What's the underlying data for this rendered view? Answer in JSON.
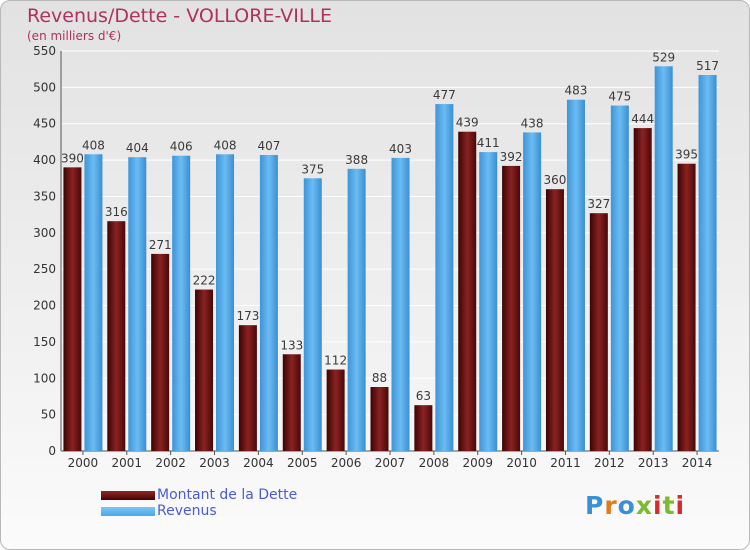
{
  "header": {
    "title": "Revenus/Dette - VOLLORE-VILLE",
    "subtitle": "(en milliers d'€)"
  },
  "legend": {
    "items": [
      {
        "label": "Montant de la Dette",
        "color": "#6b1010"
      },
      {
        "label": "Revenus",
        "color": "#4aa8e8"
      }
    ]
  },
  "logo": {
    "text": "Proxiti",
    "colors": [
      "#3a8fd8",
      "#e07b1c",
      "#3a8fd8",
      "#7cba2e",
      "#d82c2c",
      "#7cba2e",
      "#d82c2c"
    ]
  },
  "chart_data": {
    "type": "bar",
    "title": "Revenus/Dette - VOLLORE-VILLE",
    "ylabel": "(en milliers d'€)",
    "categories": [
      "2000",
      "2001",
      "2002",
      "2003",
      "2004",
      "2005",
      "2006",
      "2007",
      "2008",
      "2009",
      "2010",
      "2011",
      "2012",
      "2013",
      "2014"
    ],
    "series": [
      {
        "name": "Montant de la Dette",
        "color": "#6b1010",
        "values": [
          390,
          316,
          271,
          222,
          173,
          133,
          112,
          88,
          63,
          439,
          392,
          360,
          327,
          444,
          395
        ]
      },
      {
        "name": "Revenus",
        "color": "#4aa8e8",
        "values": [
          408,
          404,
          406,
          408,
          407,
          375,
          388,
          403,
          477,
          411,
          438,
          483,
          475,
          529,
          517
        ]
      }
    ],
    "ylim": [
      0,
      550
    ],
    "yticks": [
      0,
      50,
      100,
      150,
      200,
      250,
      300,
      350,
      400,
      450,
      500,
      550
    ],
    "grid": true,
    "legend_position": "bottom-left"
  }
}
